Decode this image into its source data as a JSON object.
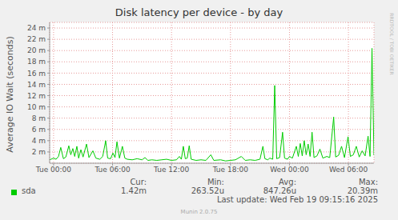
{
  "chart_data": {
    "type": "line",
    "title": "Disk latency per device - by day",
    "ylabel": "Average IO Wait (seconds)",
    "side_text": "RRDTOOL / TOBI OETIKER",
    "grid": true,
    "xlim": [
      -0.4,
      32.6
    ],
    "xticks": [
      {
        "value": 0,
        "label": "Tue 00:00"
      },
      {
        "value": 6,
        "label": "Tue 06:00"
      },
      {
        "value": 12,
        "label": "Tue 12:00"
      },
      {
        "value": 18,
        "label": "Tue 18:00"
      },
      {
        "value": 24,
        "label": "Wed 00:00"
      },
      {
        "value": 30,
        "label": "Wed 06:00"
      }
    ],
    "ylim": [
      0,
      0.025
    ],
    "yticks": [
      {
        "value": 0.002,
        "label": "2 m"
      },
      {
        "value": 0.004,
        "label": "4 m"
      },
      {
        "value": 0.006,
        "label": "6 m"
      },
      {
        "value": 0.008,
        "label": "8 m"
      },
      {
        "value": 0.01,
        "label": "10 m"
      },
      {
        "value": 0.012,
        "label": "12 m"
      },
      {
        "value": 0.014,
        "label": "14 m"
      },
      {
        "value": 0.016,
        "label": "16 m"
      },
      {
        "value": 0.018,
        "label": "18 m"
      },
      {
        "value": 0.02,
        "label": "20 m"
      },
      {
        "value": 0.022,
        "label": "22 m"
      },
      {
        "value": 0.024,
        "label": "24 m"
      }
    ],
    "x": [
      -0.4,
      0,
      0.25,
      0.5,
      0.73,
      1.0,
      1.25,
      1.55,
      1.75,
      1.96,
      2.15,
      2.37,
      2.55,
      2.78,
      3.0,
      3.35,
      3.6,
      4.0,
      4.3,
      4.7,
      5.0,
      5.3,
      5.5,
      5.8,
      6.04,
      6.25,
      6.45,
      6.7,
      7.0,
      7.25,
      7.5,
      8.0,
      8.5,
      9.0,
      9.3,
      9.6,
      10.0,
      10.5,
      11.0,
      11.5,
      12.0,
      12.5,
      12.8,
      13.0,
      13.2,
      13.4,
      13.6,
      13.8,
      14.0,
      14.5,
      15.0,
      15.5,
      16.0,
      16.3,
      17.0,
      17.5,
      18.0,
      18.5,
      19.1,
      19.5,
      20.0,
      20.5,
      21.0,
      21.3,
      21.5,
      21.8,
      22.0,
      22.3,
      22.5,
      22.7,
      23.0,
      23.3,
      23.5,
      23.8,
      24.0,
      24.3,
      24.7,
      24.9,
      25.1,
      25.3,
      25.5,
      25.7,
      25.9,
      26.1,
      26.3,
      26.5,
      26.8,
      27.1,
      27.4,
      27.8,
      28.1,
      28.5,
      28.7,
      29.0,
      29.3,
      29.6,
      29.96,
      30.2,
      30.5,
      30.8,
      31.1,
      31.4,
      31.7,
      32.0,
      32.2,
      32.4,
      32.6
    ],
    "series": [
      {
        "name": "sda",
        "color": "#00cc00",
        "values": [
          0.0006,
          0.0009,
          0.0007,
          0.0012,
          0.0028,
          0.0008,
          0.0011,
          0.0031,
          0.0015,
          0.0026,
          0.0012,
          0.003,
          0.0009,
          0.0024,
          0.0011,
          0.0034,
          0.001,
          0.0022,
          0.0009,
          0.0007,
          0.0012,
          0.004,
          0.0009,
          0.0008,
          0.0018,
          0.001,
          0.0038,
          0.0009,
          0.003,
          0.0009,
          0.0007,
          0.0006,
          0.0008,
          0.0006,
          0.001,
          0.0005,
          0.0006,
          0.0005,
          0.0006,
          0.0007,
          0.0005,
          0.0006,
          0.0012,
          0.0007,
          0.003,
          0.0008,
          0.0009,
          0.0031,
          0.0007,
          0.0005,
          0.0006,
          0.0005,
          0.0015,
          0.0005,
          0.0006,
          0.0004,
          0.0005,
          0.0006,
          0.0012,
          0.0005,
          0.0006,
          0.0005,
          0.0007,
          0.003,
          0.0008,
          0.0006,
          0.0009,
          0.0007,
          0.0138,
          0.0008,
          0.001,
          0.0055,
          0.0009,
          0.0007,
          0.0012,
          0.0009,
          0.003,
          0.0012,
          0.0035,
          0.0013,
          0.004,
          0.0015,
          0.0034,
          0.0012,
          0.0055,
          0.001,
          0.0013,
          0.0025,
          0.0009,
          0.0012,
          0.001,
          0.0082,
          0.0011,
          0.0014,
          0.003,
          0.001,
          0.0047,
          0.0012,
          0.0015,
          0.003,
          0.0011,
          0.0022,
          0.0013,
          0.0048,
          0.0012,
          0.02039,
          0.00142
        ]
      }
    ],
    "summary": {
      "labels": [
        "Cur:",
        "Min:",
        "Avg:",
        "Max:"
      ],
      "values": [
        "1.42m",
        "263.52u",
        "847.26u",
        "20.39m"
      ]
    },
    "last_update": "Last update: Wed Feb 19 09:15:16 2025",
    "footer": "Munin 2.0.75"
  }
}
